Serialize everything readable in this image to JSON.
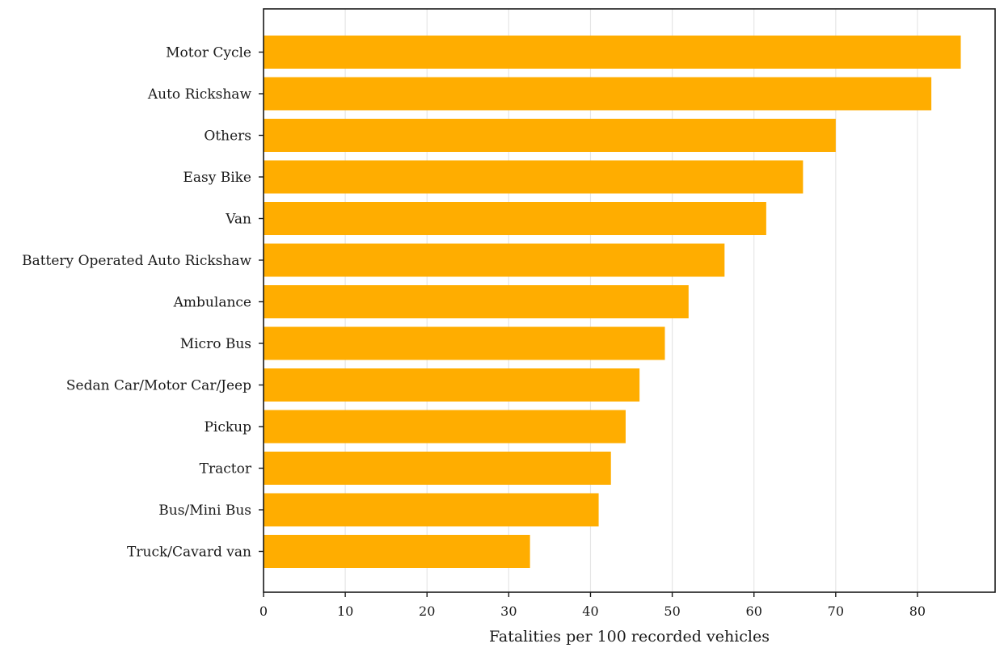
{
  "chart_data": {
    "type": "bar",
    "orientation": "horizontal",
    "title": "",
    "xlabel": "Fatalities per 100 recorded vehicles",
    "ylabel": "",
    "xlim": [
      0,
      89.5
    ],
    "xticks": [
      0,
      10,
      20,
      30,
      40,
      50,
      60,
      70,
      80
    ],
    "grid": "vertical",
    "bar_color": "#ffad00",
    "categories": [
      "Motor Cycle",
      "Auto Rickshaw",
      "Others",
      "Easy Bike",
      "Van",
      "Battery Operated Auto Rickshaw",
      "Ambulance",
      "Micro Bus",
      "Sedan Car/Motor Car/Jeep",
      "Pickup",
      "Tractor",
      "Bus/Mini Bus",
      "Truck/Cavard van"
    ],
    "values": [
      85.3,
      81.7,
      70.0,
      66.0,
      61.5,
      56.4,
      52.0,
      49.1,
      46.0,
      44.3,
      42.5,
      41.0,
      32.6
    ]
  }
}
